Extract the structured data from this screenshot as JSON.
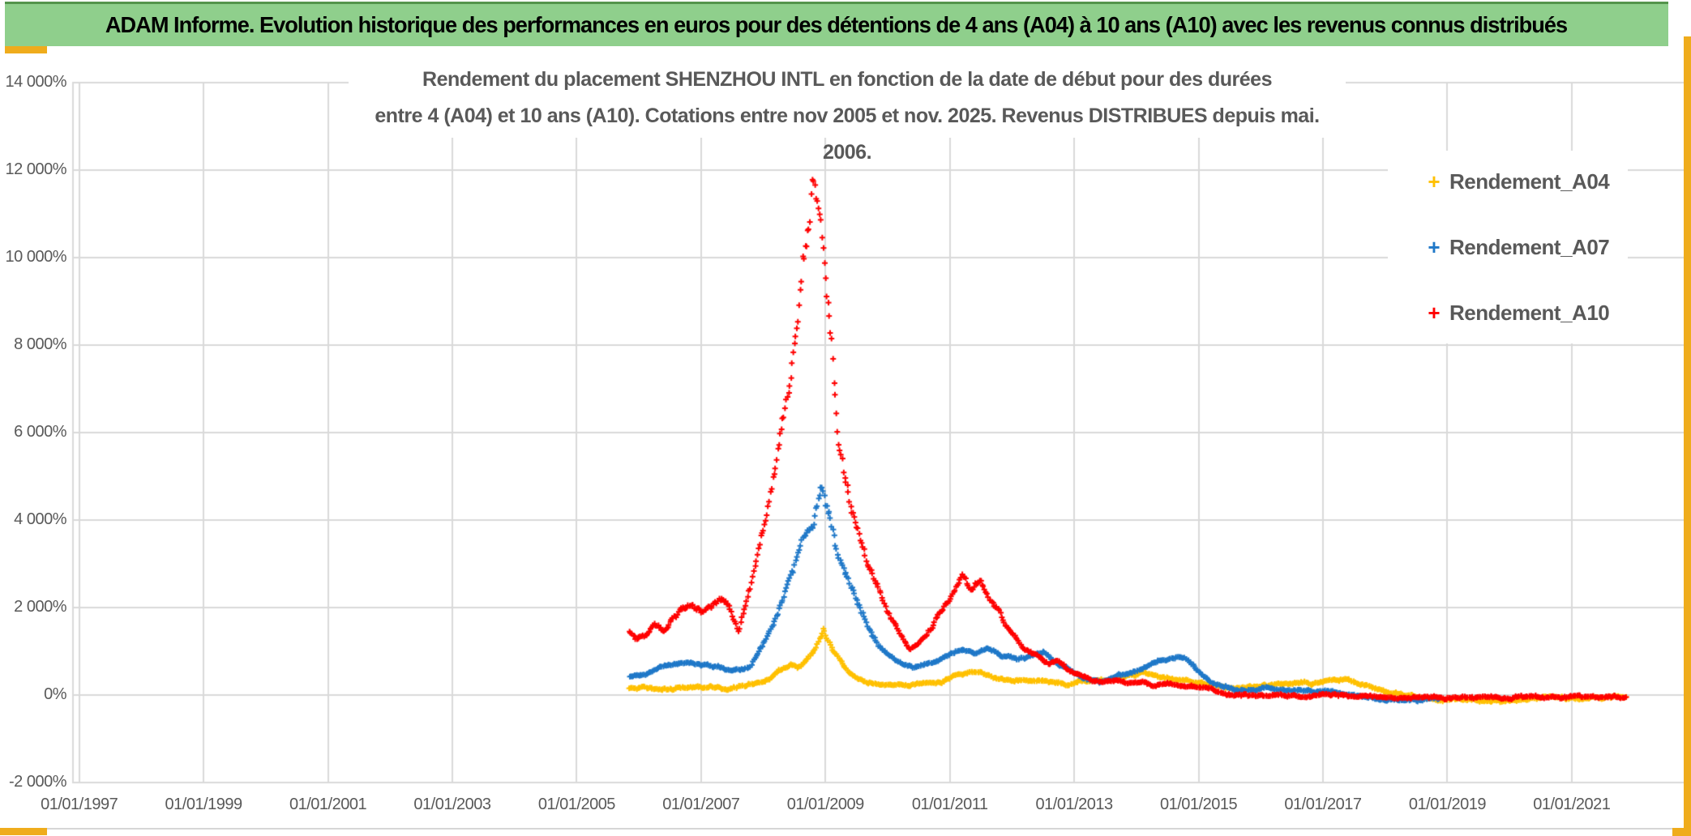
{
  "theme": {
    "banner_green": "#8FCF8C",
    "banner_text_color": "#000000",
    "accent_gold": "#EFAC1C",
    "axis_text_grey": "#595959",
    "grid_grey": "#D9D9D9",
    "plot_background": "#FFFFFF"
  },
  "header": {
    "title": "ADAM Informe. Evolution historique des performances en euros pour des détentions de 4 ans (A04) à 10 ans (A10) avec les revenus connus distribués"
  },
  "chart_data": {
    "type": "scatter",
    "marker": "plus",
    "title_line1": "Rendement du placement SHENZHOU INTL en fonction de la date de début pour des durées",
    "title_line2": "entre 4 (A04) et 10 ans (A10). Cotations entre nov 2005 et nov. 2025. Revenus DISTRIBUES depuis mai. 2006.",
    "grid": true,
    "legend_position": "right-inside",
    "xlim": [
      1996.9,
      2022.84
    ],
    "ylim": [
      -2000,
      14000
    ],
    "y_ticks": [
      {
        "value": 14000,
        "label": "14 000%"
      },
      {
        "value": 12000,
        "label": "12 000%"
      },
      {
        "value": 10000,
        "label": "10 000%"
      },
      {
        "value": 8000,
        "label": "8 000%"
      },
      {
        "value": 6000,
        "label": "6 000%"
      },
      {
        "value": 4000,
        "label": "4 000%"
      },
      {
        "value": 2000,
        "label": "2 000%"
      },
      {
        "value": 0,
        "label": "0%"
      },
      {
        "value": -2000,
        "label": "-2 000%"
      }
    ],
    "x_ticks": [
      {
        "year": 1997,
        "label": "01/01/1997"
      },
      {
        "year": 1999,
        "label": "01/01/1999"
      },
      {
        "year": 2001,
        "label": "01/01/2001"
      },
      {
        "year": 2003,
        "label": "01/01/2003"
      },
      {
        "year": 2005,
        "label": "01/01/2005"
      },
      {
        "year": 2007,
        "label": "01/01/2007"
      },
      {
        "year": 2009,
        "label": "01/01/2009"
      },
      {
        "year": 2011,
        "label": "01/01/2011"
      },
      {
        "year": 2013,
        "label": "01/01/2013"
      },
      {
        "year": 2015,
        "label": "01/01/2015"
      },
      {
        "year": 2017,
        "label": "01/01/2017"
      },
      {
        "year": 2019,
        "label": "01/01/2019"
      },
      {
        "year": 2021,
        "label": "01/01/2021"
      }
    ],
    "legend": [
      {
        "label": "Rendement_A04",
        "color": "#FFC000"
      },
      {
        "label": "Rendement_A07",
        "color": "#1F78C8"
      },
      {
        "label": "Rendement_A10",
        "color": "#FF0000"
      }
    ],
    "series": [
      {
        "name": "Rendement_A04",
        "color": "#FFC000",
        "unit": "%",
        "points": [
          [
            2005.85,
            160
          ],
          [
            2006.2,
            185
          ],
          [
            2006.5,
            170
          ],
          [
            2006.8,
            205
          ],
          [
            2007.1,
            185
          ],
          [
            2007.4,
            165
          ],
          [
            2007.7,
            210
          ],
          [
            2007.9,
            280
          ],
          [
            2008.1,
            400
          ],
          [
            2008.3,
            600
          ],
          [
            2008.45,
            700
          ],
          [
            2008.55,
            620
          ],
          [
            2008.7,
            820
          ],
          [
            2008.85,
            1100
          ],
          [
            2008.97,
            1480
          ],
          [
            2009.05,
            1250
          ],
          [
            2009.15,
            950
          ],
          [
            2009.25,
            750
          ],
          [
            2009.35,
            550
          ],
          [
            2009.5,
            380
          ],
          [
            2009.65,
            280
          ],
          [
            2009.8,
            230
          ],
          [
            2010.0,
            205
          ],
          [
            2010.3,
            185
          ],
          [
            2010.6,
            220
          ],
          [
            2010.9,
            280
          ],
          [
            2011.1,
            380
          ],
          [
            2011.3,
            470
          ],
          [
            2011.5,
            420
          ],
          [
            2011.7,
            330
          ],
          [
            2012.0,
            260
          ],
          [
            2012.4,
            230
          ],
          [
            2012.7,
            200
          ],
          [
            2012.9,
            170
          ],
          [
            2013.1,
            250
          ],
          [
            2013.3,
            300
          ],
          [
            2013.5,
            270
          ],
          [
            2013.7,
            350
          ],
          [
            2013.9,
            420
          ],
          [
            2014.1,
            470
          ],
          [
            2014.3,
            420
          ],
          [
            2014.5,
            350
          ],
          [
            2014.7,
            310
          ],
          [
            2014.9,
            260
          ],
          [
            2015.1,
            200
          ],
          [
            2015.3,
            160
          ],
          [
            2015.5,
            130
          ],
          [
            2015.7,
            150
          ],
          [
            2015.9,
            175
          ],
          [
            2016.2,
            200
          ],
          [
            2016.5,
            230
          ],
          [
            2016.8,
            260
          ],
          [
            2017.1,
            310
          ],
          [
            2017.35,
            370
          ],
          [
            2017.6,
            280
          ],
          [
            2017.85,
            160
          ],
          [
            2018.1,
            60
          ],
          [
            2018.35,
            -20
          ],
          [
            2018.6,
            -80
          ],
          [
            2019.0,
            -95
          ],
          [
            2019.5,
            -105
          ],
          [
            2020.0,
            -110
          ],
          [
            2020.5,
            -110
          ],
          [
            2021.0,
            -120
          ],
          [
            2021.5,
            -120
          ],
          [
            2021.88,
            -125
          ]
        ]
      },
      {
        "name": "Rendement_A07",
        "color": "#1F78C8",
        "unit": "%",
        "points": [
          [
            2005.85,
            400
          ],
          [
            2006.1,
            480
          ],
          [
            2006.3,
            600
          ],
          [
            2006.5,
            660
          ],
          [
            2006.8,
            750
          ],
          [
            2007.0,
            700
          ],
          [
            2007.3,
            650
          ],
          [
            2007.5,
            560
          ],
          [
            2007.8,
            700
          ],
          [
            2008.0,
            1200
          ],
          [
            2008.2,
            1800
          ],
          [
            2008.4,
            2600
          ],
          [
            2008.6,
            3400
          ],
          [
            2008.8,
            4300
          ],
          [
            2008.95,
            5000
          ],
          [
            2009.05,
            4400
          ],
          [
            2009.15,
            3800
          ],
          [
            2009.25,
            3300
          ],
          [
            2009.35,
            2900
          ],
          [
            2009.5,
            2400
          ],
          [
            2009.6,
            2000
          ],
          [
            2009.7,
            1600
          ],
          [
            2009.85,
            1200
          ],
          [
            2010.0,
            1000
          ],
          [
            2010.2,
            780
          ],
          [
            2010.4,
            660
          ],
          [
            2010.6,
            700
          ],
          [
            2010.8,
            800
          ],
          [
            2011.0,
            900
          ],
          [
            2011.2,
            1050
          ],
          [
            2011.4,
            950
          ],
          [
            2011.6,
            1050
          ],
          [
            2011.8,
            900
          ],
          [
            2012.1,
            800
          ],
          [
            2012.3,
            880
          ],
          [
            2012.5,
            950
          ],
          [
            2012.7,
            750
          ],
          [
            2012.9,
            550
          ],
          [
            2013.05,
            430
          ],
          [
            2013.2,
            350
          ],
          [
            2013.4,
            280
          ],
          [
            2013.55,
            350
          ],
          [
            2013.7,
            450
          ],
          [
            2013.9,
            520
          ],
          [
            2014.1,
            620
          ],
          [
            2014.3,
            720
          ],
          [
            2014.5,
            820
          ],
          [
            2014.65,
            890
          ],
          [
            2014.8,
            840
          ],
          [
            2014.95,
            620
          ],
          [
            2015.1,
            430
          ],
          [
            2015.25,
            260
          ],
          [
            2015.45,
            170
          ],
          [
            2015.7,
            140
          ],
          [
            2015.9,
            160
          ],
          [
            2016.1,
            190
          ],
          [
            2016.3,
            140
          ],
          [
            2016.6,
            120
          ],
          [
            2016.9,
            90
          ],
          [
            2017.2,
            60
          ],
          [
            2017.5,
            0
          ],
          [
            2017.8,
            -60
          ],
          [
            2018.0,
            -100
          ],
          [
            2018.2,
            -120
          ],
          [
            2018.5,
            -130
          ],
          [
            2018.7,
            -110
          ],
          [
            2018.88,
            -120
          ]
        ]
      },
      {
        "name": "Rendement_A10",
        "color": "#FF0000",
        "unit": "%",
        "points": [
          [
            2005.85,
            1480
          ],
          [
            2005.95,
            1250
          ],
          [
            2006.1,
            1350
          ],
          [
            2006.25,
            1550
          ],
          [
            2006.4,
            1500
          ],
          [
            2006.55,
            1750
          ],
          [
            2006.7,
            1950
          ],
          [
            2006.85,
            2100
          ],
          [
            2007.0,
            1900
          ],
          [
            2007.15,
            2000
          ],
          [
            2007.3,
            2150
          ],
          [
            2007.45,
            2000
          ],
          [
            2007.6,
            1400
          ],
          [
            2007.8,
            2500
          ],
          [
            2008.0,
            3700
          ],
          [
            2008.1,
            4300
          ],
          [
            2008.2,
            5000
          ],
          [
            2008.3,
            5800
          ],
          [
            2008.4,
            6600
          ],
          [
            2008.5,
            7500
          ],
          [
            2008.6,
            8600
          ],
          [
            2008.7,
            9600
          ],
          [
            2008.8,
            10800
          ],
          [
            2008.9,
            10200
          ],
          [
            2009.0,
            9000
          ],
          [
            2009.1,
            7300
          ],
          [
            2009.2,
            5600
          ],
          [
            2009.3,
            4700
          ],
          [
            2009.4,
            3950
          ],
          [
            2009.5,
            3450
          ],
          [
            2009.6,
            3000
          ],
          [
            2009.7,
            2650
          ],
          [
            2009.8,
            2350
          ],
          [
            2009.9,
            2100
          ],
          [
            2010.0,
            1800
          ],
          [
            2010.15,
            1450
          ],
          [
            2010.35,
            1000
          ],
          [
            2010.5,
            1150
          ],
          [
            2010.7,
            1500
          ],
          [
            2010.9,
            1950
          ],
          [
            2011.05,
            2250
          ],
          [
            2011.2,
            2600
          ],
          [
            2011.35,
            2250
          ],
          [
            2011.5,
            2450
          ],
          [
            2011.65,
            2050
          ],
          [
            2011.8,
            1750
          ],
          [
            2012.0,
            1300
          ],
          [
            2012.2,
            1000
          ],
          [
            2012.4,
            880
          ],
          [
            2012.6,
            640
          ],
          [
            2012.75,
            720
          ],
          [
            2012.9,
            520
          ],
          [
            2013.05,
            430
          ],
          [
            2013.2,
            330
          ],
          [
            2013.35,
            240
          ],
          [
            2013.5,
            230
          ],
          [
            2013.7,
            300
          ],
          [
            2013.9,
            250
          ],
          [
            2014.1,
            300
          ],
          [
            2014.3,
            200
          ],
          [
            2014.5,
            260
          ],
          [
            2014.7,
            180
          ],
          [
            2014.9,
            150
          ],
          [
            2015.1,
            120
          ],
          [
            2015.3,
            60
          ],
          [
            2015.45,
            10
          ],
          [
            2015.6,
            -20
          ],
          [
            2016.0,
            -30
          ],
          [
            2016.5,
            -25
          ],
          [
            2017.0,
            -30
          ],
          [
            2017.5,
            -35
          ],
          [
            2018.0,
            -40
          ],
          [
            2018.5,
            -40
          ],
          [
            2019.0,
            -45
          ],
          [
            2019.5,
            -45
          ],
          [
            2020.0,
            -45
          ],
          [
            2020.5,
            -45
          ],
          [
            2021.0,
            -50
          ],
          [
            2021.5,
            -50
          ],
          [
            2021.88,
            -50
          ]
        ]
      }
    ]
  }
}
